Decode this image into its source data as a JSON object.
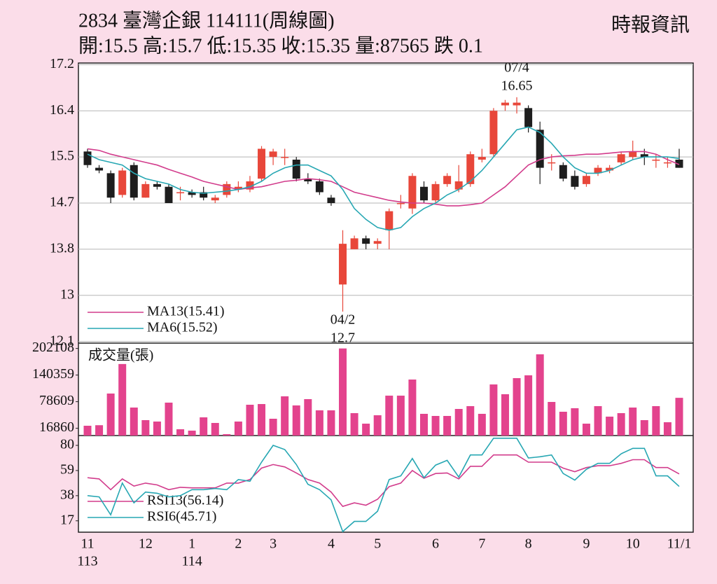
{
  "header": {
    "title": "2834  臺灣企銀 114111(周線圖)",
    "quote": "開:15.5 高:15.7 低:15.35 收:15.35 量:87565 跌 0.1",
    "source": "時報資訊"
  },
  "chart_data": [
    {
      "type": "candlestick",
      "categories": [
        "11",
        null,
        null,
        null,
        null,
        "12",
        null,
        null,
        null,
        "1",
        null,
        null,
        null,
        "2",
        null,
        null,
        "3",
        null,
        null,
        null,
        null,
        "4",
        null,
        null,
        null,
        "5",
        null,
        null,
        null,
        null,
        "6",
        null,
        null,
        null,
        "7",
        null,
        null,
        null,
        "8",
        null,
        null,
        null,
        null,
        "9",
        null,
        null,
        null,
        "10",
        null,
        null,
        null,
        "11/1"
      ],
      "category_years": [
        "113",
        null,
        null,
        null,
        null,
        null,
        null,
        null,
        null,
        "114",
        null,
        null,
        null,
        null,
        null,
        null,
        null,
        null,
        null,
        null,
        null,
        null,
        null,
        null,
        null,
        null,
        null,
        null,
        null,
        null,
        null,
        null,
        null,
        null,
        null,
        null,
        null,
        null,
        null,
        null,
        null,
        null,
        null,
        null,
        null,
        null,
        null,
        null,
        null,
        null,
        null,
        null
      ],
      "open": [
        15.65,
        15.35,
        15.25,
        14.85,
        15.4,
        14.8,
        15.05,
        15.0,
        14.9,
        14.9,
        14.9,
        14.75,
        14.85,
        14.95,
        14.95,
        15.15,
        15.55,
        15.55,
        15.5,
        15.15,
        15.1,
        14.8,
        13.2,
        13.85,
        14.05,
        13.95,
        14.2,
        14.7,
        14.6,
        15.0,
        14.75,
        15.05,
        14.95,
        15.05,
        15.5,
        15.6,
        16.5,
        16.5,
        16.45,
        16.05,
        15.45,
        15.4,
        15.2,
        15.05,
        15.25,
        15.3,
        15.45,
        15.55,
        15.6,
        15.5,
        15.45,
        15.5
      ],
      "high": [
        15.7,
        15.4,
        15.3,
        15.35,
        15.45,
        15.1,
        15.1,
        15.05,
        15.0,
        14.95,
        15.0,
        14.85,
        15.1,
        15.1,
        15.2,
        15.75,
        15.7,
        15.7,
        15.55,
        15.25,
        15.15,
        14.85,
        14.2,
        14.1,
        14.1,
        14.05,
        14.6,
        14.85,
        15.25,
        15.1,
        15.1,
        15.25,
        15.4,
        15.65,
        15.7,
        16.45,
        16.6,
        16.65,
        16.5,
        16.2,
        15.6,
        15.45,
        15.3,
        15.25,
        15.4,
        15.4,
        15.65,
        15.85,
        15.7,
        15.6,
        15.55,
        15.7
      ],
      "low": [
        15.35,
        15.25,
        14.7,
        14.8,
        14.75,
        14.8,
        14.95,
        14.7,
        14.75,
        14.8,
        14.75,
        14.7,
        14.8,
        14.9,
        14.9,
        15.1,
        15.4,
        15.4,
        15.1,
        15.05,
        14.85,
        14.65,
        12.7,
        13.85,
        13.85,
        13.85,
        13.85,
        14.6,
        14.5,
        14.7,
        14.7,
        15.0,
        14.9,
        15.0,
        15.45,
        15.55,
        16.4,
        16.35,
        16.0,
        15.05,
        15.3,
        15.1,
        14.95,
        15.0,
        15.2,
        15.25,
        15.4,
        15.5,
        15.4,
        15.35,
        15.35,
        15.35
      ],
      "close": [
        15.4,
        15.3,
        14.8,
        15.3,
        14.8,
        15.05,
        15.0,
        14.7,
        14.9,
        14.85,
        14.8,
        14.8,
        15.05,
        15.0,
        15.1,
        15.7,
        15.65,
        15.55,
        15.15,
        15.1,
        14.9,
        14.7,
        13.95,
        14.05,
        13.95,
        14.0,
        14.55,
        14.7,
        15.2,
        14.75,
        15.05,
        15.2,
        15.1,
        15.6,
        15.55,
        16.4,
        16.55,
        16.55,
        16.1,
        15.35,
        15.45,
        15.15,
        15.0,
        15.2,
        15.35,
        15.35,
        15.6,
        15.65,
        15.55,
        15.5,
        15.45,
        15.35
      ],
      "up_color": "#e8473a",
      "down_color": "#1e1e1e",
      "series": [
        {
          "name": "MA13(15.41)",
          "color": "#d23c8c",
          "values": [
            15.7,
            15.67,
            15.6,
            15.55,
            15.5,
            15.45,
            15.4,
            15.32,
            15.25,
            15.18,
            15.1,
            15.05,
            15.0,
            14.95,
            14.98,
            15.0,
            15.05,
            15.1,
            15.12,
            15.15,
            15.13,
            15.1,
            15.0,
            14.9,
            14.85,
            14.8,
            14.75,
            14.72,
            14.7,
            14.7,
            14.68,
            14.65,
            14.65,
            14.67,
            14.7,
            14.85,
            15.0,
            15.2,
            15.4,
            15.5,
            15.55,
            15.57,
            15.58,
            15.6,
            15.6,
            15.62,
            15.64,
            15.65,
            15.65,
            15.6,
            15.5,
            15.41
          ]
        },
        {
          "name": "MA6(15.52)",
          "color": "#27a7b3",
          "values": [
            15.6,
            15.5,
            15.45,
            15.4,
            15.25,
            15.15,
            15.1,
            15.05,
            14.95,
            14.9,
            14.88,
            14.9,
            14.92,
            14.95,
            15.0,
            15.1,
            15.25,
            15.35,
            15.4,
            15.4,
            15.3,
            15.2,
            14.95,
            14.6,
            14.4,
            14.25,
            14.2,
            14.25,
            14.45,
            14.6,
            14.7,
            14.85,
            14.95,
            15.1,
            15.3,
            15.55,
            15.8,
            16.05,
            16.1,
            16.0,
            15.8,
            15.55,
            15.35,
            15.25,
            15.25,
            15.3,
            15.4,
            15.5,
            15.55,
            15.55,
            15.55,
            15.52
          ]
        }
      ],
      "annotations": [
        {
          "date": "07/4",
          "price": 16.65,
          "position": "above"
        },
        {
          "date": "04/2",
          "price": 12.7,
          "position": "below"
        }
      ],
      "ylim": [
        12.12,
        17.28
      ],
      "yticks": [
        {
          "value": 17.25,
          "label": "17.2"
        },
        16.4,
        {
          "value": 15.55,
          "label": "15.5"
        },
        14.7,
        {
          "value": 13.85,
          "label": "13.8"
        },
        13.0,
        {
          "value": 12.15,
          "label": "12.1"
        }
      ],
      "grid": true
    },
    {
      "type": "bar",
      "series": [
        {
          "name": "成交量(張)",
          "color": "#e3438d",
          "values": [
            22750,
            24000,
            97500,
            166000,
            65000,
            35750,
            32500,
            76400,
            14600,
            11400,
            42250,
            29250,
            3250,
            32500,
            71500,
            73100,
            39000,
            91000,
            69900,
            84500,
            58500,
            58500,
            202108,
            52000,
            27600,
            47100,
            92600,
            92600,
            130000,
            50400,
            45500,
            45500,
            61750,
            68250,
            50400,
            118600,
            95900,
            133250,
            139750,
            188500,
            78000,
            55250,
            63400,
            27600,
            68250,
            43900,
            52000,
            65000,
            35750,
            68250,
            30900,
            87565
          ]
        }
      ],
      "ylim": [
        0,
        214500
      ],
      "yticks": [
        16860,
        78609,
        140359,
        202108
      ],
      "grid": false
    },
    {
      "type": "line",
      "series": [
        {
          "name": "RSI13(56.14)",
          "color": "#d23c8c",
          "values": [
            53,
            52,
            43,
            52,
            46,
            48.5,
            47,
            43,
            45,
            44.5,
            44.5,
            44.5,
            48.5,
            48.5,
            51.5,
            61,
            64,
            62,
            57,
            51.5,
            48.5,
            41,
            29,
            32,
            30,
            35,
            45.5,
            48.5,
            59,
            52.5,
            56.5,
            57,
            52,
            62.5,
            62.5,
            72,
            72,
            72,
            66,
            66,
            66,
            61,
            58,
            61.5,
            63,
            63,
            65,
            68,
            68,
            61.5,
            61.5,
            56.14
          ]
        },
        {
          "name": "RSI6(45.71)",
          "color": "#27a7b3",
          "values": [
            38,
            37,
            22,
            48.5,
            32,
            41,
            40,
            37,
            38,
            43,
            43,
            44,
            43,
            51.5,
            50,
            66,
            80,
            76.5,
            64,
            47.5,
            43,
            34.5,
            8,
            16.5,
            16.5,
            25,
            51.5,
            54.5,
            69,
            53,
            63.5,
            67.5,
            53.5,
            72,
            72,
            86,
            86,
            86,
            69.5,
            70.5,
            72,
            56.5,
            51,
            60,
            65,
            65,
            73,
            77.5,
            77.5,
            54.5,
            54.5,
            45.71
          ]
        }
      ],
      "ylim": [
        7.5,
        88.2
      ],
      "yticks": [
        17,
        38,
        59,
        80
      ],
      "grid": false
    }
  ]
}
